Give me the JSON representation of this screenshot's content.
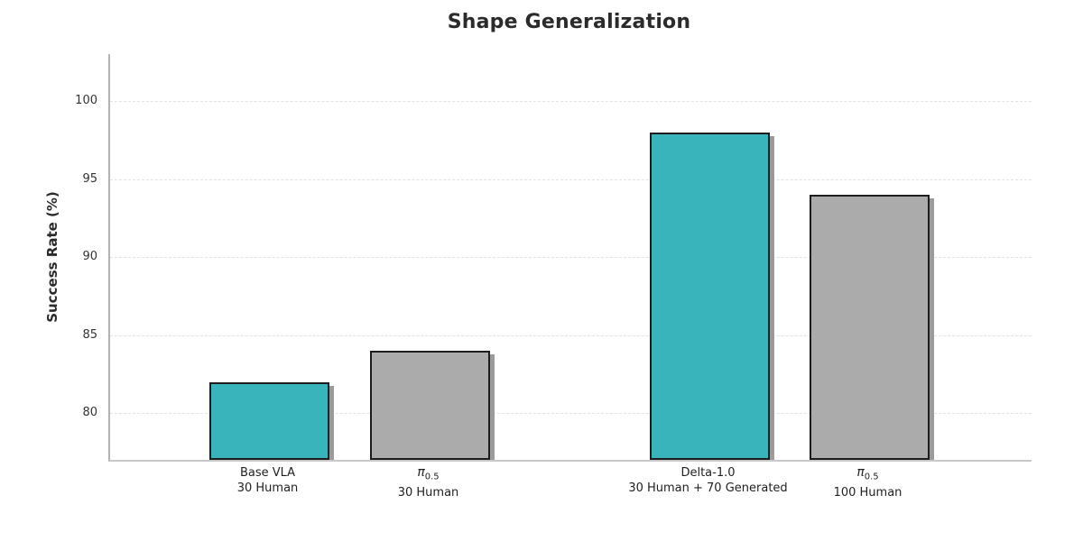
{
  "chart_data": {
    "type": "bar",
    "title": "Shape Generalization",
    "xlabel": "",
    "ylabel": "Success Rate (%)",
    "ylim": [
      77,
      103
    ],
    "yticks": [
      80,
      85,
      90,
      95,
      100
    ],
    "grid": "horizontal-dashed",
    "legend": "none",
    "colors": {
      "teal_bar": "#39b4bb",
      "gray_bar": "#ababab",
      "bar_edge": "#1d1d1d",
      "bar_shadow": "#9b9b9b",
      "gridline": "#e2e2e2",
      "spine": "#b3b3b3",
      "title_text": "#2b2b2b",
      "tick_text": "#333333"
    },
    "bars": [
      {
        "label_line1": "Base VLA",
        "label_line2": "30 Human",
        "value": 82,
        "color": "#39b4bb"
      },
      {
        "label_line1": "π0.5",
        "label_line2": "30 Human",
        "value": 84,
        "color": "#ababab"
      },
      {
        "label_line1": "Delta-1.0",
        "label_line2": "30 Human + 70 Generated",
        "value": 98,
        "color": "#39b4bb"
      },
      {
        "label_line1": "π0.5",
        "label_line2": "100 Human",
        "value": 94,
        "color": "#ababab"
      }
    ]
  }
}
